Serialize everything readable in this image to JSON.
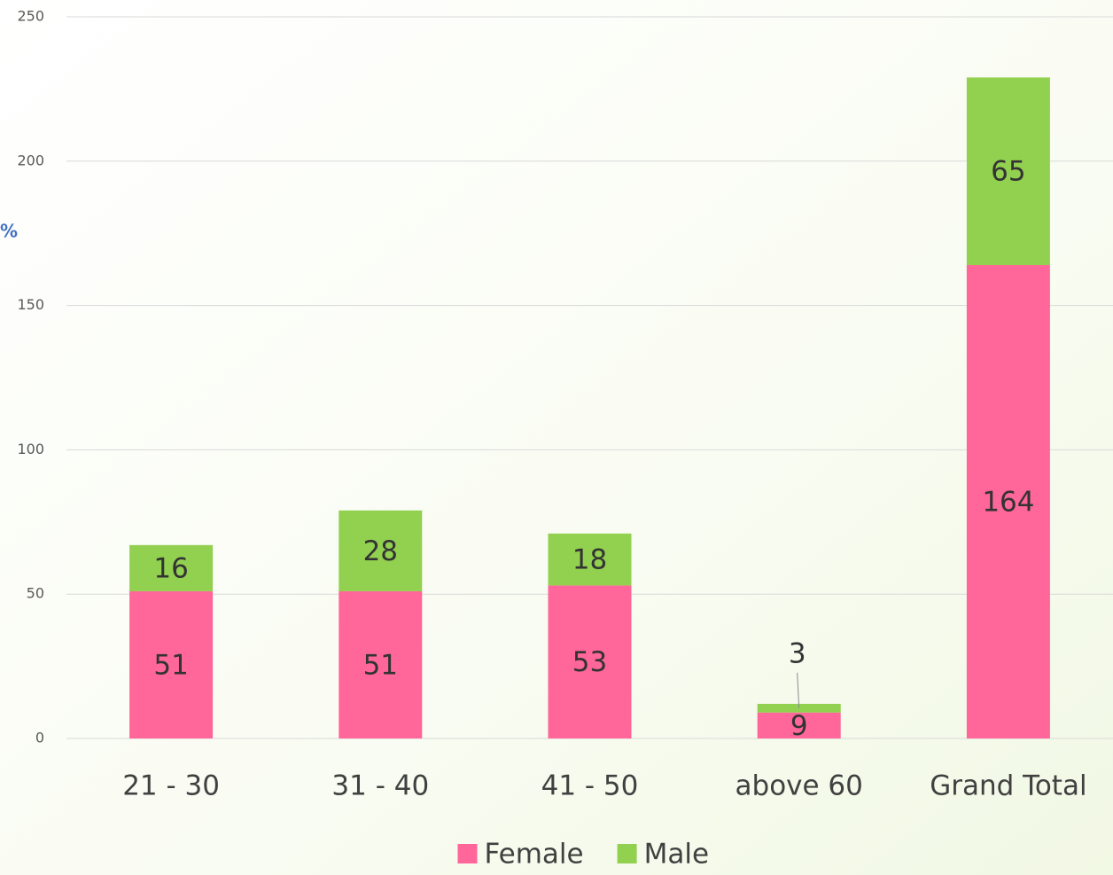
{
  "chart_data": {
    "type": "bar",
    "stacked": true,
    "ylabel": "%",
    "categories": [
      "21 - 30",
      "31 - 40",
      "41 - 50",
      "above 60",
      "Grand Total"
    ],
    "series": [
      {
        "name": "Female",
        "color": "#ff6699",
        "values": [
          51,
          51,
          53,
          9,
          164
        ]
      },
      {
        "name": "Male",
        "color": "#92d050",
        "values": [
          16,
          28,
          18,
          3,
          65
        ]
      }
    ],
    "ylim": [
      0,
      250
    ],
    "yticks": [
      0,
      50,
      100,
      150,
      200,
      250
    ],
    "grid": true,
    "legend": "bottom"
  }
}
